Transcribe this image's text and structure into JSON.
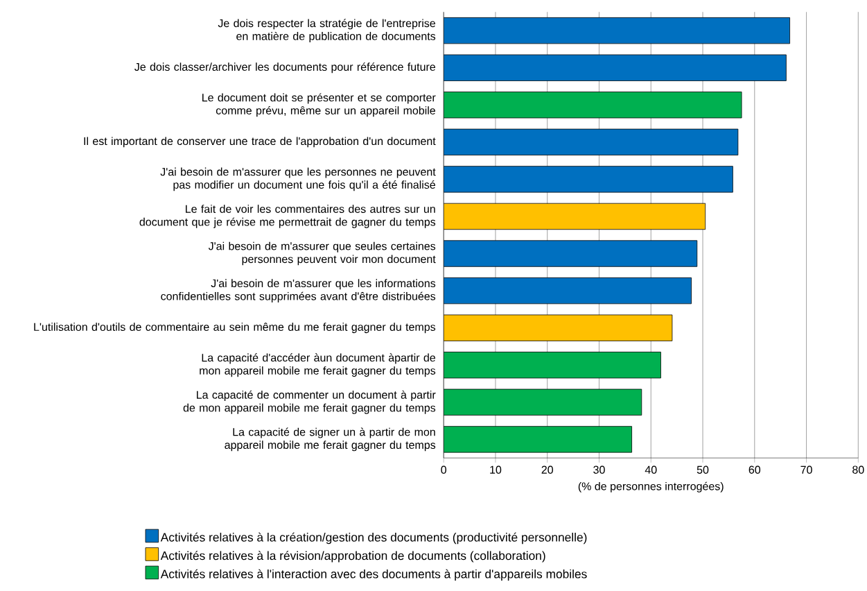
{
  "chart_data": {
    "type": "bar",
    "orientation": "horizontal",
    "xlabel": "(% de personnes interrogées)",
    "categories": [
      "Je dois respecter la stratégie de l'entreprise en matière de publication de documents",
      "Je dois classer/archiver les documents pour référence future",
      "Le document doit se présenter et se comporter comme prévu, même sur un appareil mobile",
      "Il est important de conserver une trace de l'approbation d'un document",
      "J'ai besoin de m'assurer que les personnes ne peuvent pas modifier un document une fois qu'il a été finalisé",
      "Le fait de voir les commentaires des autres sur un document que je révise me permettrait de gagner du temps",
      "J'ai besoin de m'assurer que seules certaines personnes peuvent voir mon document",
      "J'ai besoin de m'assurer que les informations confidentielles sont supprimées avant d'être distribuées",
      "L'utilisation d'outils de commentaire au sein même du me ferait gagner du temps",
      "La capacité d'accéder àun document àpartir de mon appareil mobile me ferait gagner du temps",
      "La capacité de commenter un document à partir de mon appareil mobile me ferait gagner du temps",
      "La capacité de signer un à partir de mon appareil mobile me ferait gagner du temps"
    ],
    "series": [
      {
        "name": "Activités relatives à la création/gestion des documents (productivité personnelle)",
        "color": "#0070c0",
        "values": [
          66.8,
          66.1,
          null,
          56.8,
          55.8,
          null,
          48.9,
          47.8,
          null,
          null,
          null,
          null
        ]
      },
      {
        "name": "Activités relatives à la révision/approbation de documents (collaboration)",
        "color": "#ffc000",
        "values": [
          null,
          null,
          null,
          null,
          null,
          50.5,
          null,
          null,
          44.1,
          null,
          null,
          null
        ]
      },
      {
        "name": "Activités relatives à l'interaction avec des documents à partir d'appareils mobiles",
        "color": "#00b050",
        "values": [
          null,
          null,
          57.5,
          null,
          null,
          null,
          null,
          null,
          null,
          41.9,
          38.2,
          36.3
        ]
      }
    ],
    "xlim": [
      0,
      80
    ],
    "xticks": [
      0,
      10,
      20,
      30,
      40,
      50,
      60,
      70,
      80
    ],
    "grid": "x",
    "legend": "bottom"
  }
}
